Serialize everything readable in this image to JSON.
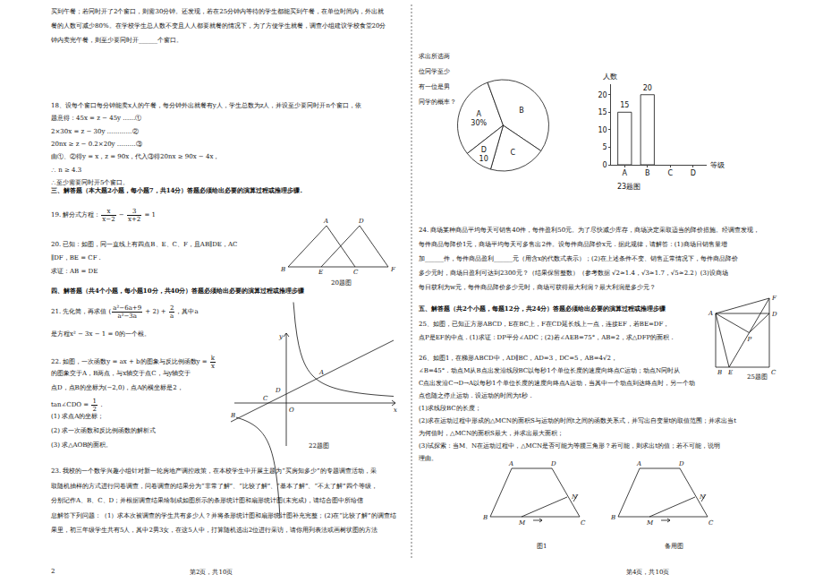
{
  "text": {
    "q17": [
      "买到午餐；若同时开了2个窗口，则需30分钟。还发现，若在25分钟内等待的学生都能买到午餐，在单位时间内，外出就",
      "餐的人数可减少80%。在学校学生总人数不变且人人都要就餐的情况下，为了方便学生就餐，调查小组建议学校食堂20分",
      "钟内卖完午餐，则至少要同时开______个窗口。"
    ],
    "q18": [
      "18、设每个窗口每分钟能卖x人的午餐，每分钟外出就餐有y人，学生总数为z人，并设至少要同时开n个窗口，依",
      "题意得：45x = z − 45y  ……①",
      "2×30x = z − 30y …………②",
      "20nx ≥ z − 0.2×20y ………③",
      "由①、②得y = x，z = 90x，代入③得20nx ≥ 90x − 4x，",
      "∴ n ≥ 4.3",
      "∴至少需要同时开5个窗口。"
    ],
    "section3": [
      "三、解答题（本大题2小题，每小题7，共14分）答题必须给出必要的演算过程或推理步骤."
    ],
    "q19": [
      [
        "19. 解分式方程：",
        {
          "frac": [
            "x",
            "x−2"
          ]
        },
        " − ",
        {
          "frac": [
            "3",
            "x+2"
          ]
        },
        " = 1"
      ]
    ],
    "q20": [
      "20. 已知：如图，同一直线上有四点B、E、C、F，且AB∥DE，AC",
      "∥DF，BE = CF．",
      "      求证：AB = DE"
    ],
    "section4": [
      "四、解答题（共4个小题，每小题10分，共40分）答题必须给出必要的演算过程或推理步骤"
    ],
    "q21": [
      [
        "21. 先化简，再求值 (",
        {
          "frac": [
            "a²−6a+9",
            "a²−3a"
          ]
        },
        " + 2) + ",
        {
          "frac": [
            "2",
            "a"
          ]
        },
        "，其中a"
      ],
      "是方程x² − 3x − 1 = 0的一个根。"
    ],
    "q22": [
      [
        "22. 如图，一次函数y = ax + b的图象与反比例函数y = ",
        {
          "frac": [
            "k",
            "x"
          ]
        }
      ],
      "的图象交于A，B两点，与x轴交于点C，与y轴交于",
      "点D，点B的坐标为(−2,0)，点A的横坐标是2，",
      [
        "tan∠CDO = ",
        {
          "frac": [
            "1",
            "2"
          ]
        },
        "．"
      ],
      "(1) 求点A的坐标；",
      "(2) 求一次函数和反比例函数的解析式",
      "(3) 求△AOB的面积。"
    ],
    "q23": [
      "23. 我校的一个数学兴趣小组针对新一轮房地产调控政策，在本校学生中开展主题为“买房知多少”的专题调查活动，采",
      "取随机抽样的方式进行问卷调查，问卷调查的结果分为“非常了解”、“比较了解”、“基本了解”、“不太了解”四个等级，",
      "分别记作A、B、C、D；并根据调查结果绘制成如图所示的条形统计图和扇形统计图(未完成)，请结合图中所给信",
      "息解答下列问题：（1）求本次被调查的学生共有多少人？并将条形统计图和扇形统计图补充完整；(2)在“比较了解”的调查结",
      "果里，初三年级学生共有5人，其中2男3女，在这5人中，打算随机选出2位进行采访，请你用列表法或画树状图的方法"
    ],
    "q23_tail": [
      "求出所选两",
      "位同学至少",
      "有一位是男",
      "同学的概率？"
    ],
    "q24": [
      "24. 商场某种商品平均每天可销售40件，每件盈利50元。为了尽快减少库存，商场决定采取适当的降价措施。经调查发现，",
      "每件商品每降价1元，商场平均每天可多售出2件。设每件商品降价x元．据此规律，请解答：(1)商场日销售量增",
      "加______件，每件商品盈利______元（用含x的代数式表示）；(2)在上述条件不变、销售正常情况下，每件商品降价",
      "多少元时，商场日盈利可达到2300元？（结果保留整数）（参考数据 √2≈1.4，√3≈1.7，√5≈2.2）(3)设商场",
      "每日获利为w元，每件商品降价多少元时，商场可获得最大利润？最大利润是多少元？"
    ],
    "section5": [
      "五、解答题（共2个小题，每题12分，共24分）答题必须给出必要的演算过程或推理步骤"
    ],
    "q25": [
      "25、如图，已知正方形ABCD，E在BC上，F在CD延长线上一点，连接EF，若BE=DF，",
      "点P是EF的中点．(1)求证：DP平分∠ADC；(2)若∠AEB=75°，AB=2，求△DFP的面积．"
    ],
    "q26": [
      "26、如图1，在梯形ABCD中，AD∥BC，AD=3，DC=5，AB=4√2，",
      "∠B=45°．动点M从B点出发沿线段BC以每秒1个单位长度的速度向终点C运动；动点N同时从",
      "C点出发沿C→D→A以每秒1个单位长度的速度向终点A运动，当其中一个动点到达终点时，另一个动",
      "点也随之停止运动．设运动的时间为t秒．",
      "(1)求线段BC的长度；",
      "(2)求在运动过程中形成的△MCN的面积S与运动的时间t之间的函数关系式，并写出自变量t的取值范围；并求出当t",
      "为何值时，△MCN的面积S最大，并求出最大面积；",
      "(3)试探索：当M、N在运动过程中，△MCN是否可能为等腰三角形？若可能，则求出t的值；若不可能，说明",
      "理由。"
    ]
  },
  "figures": {
    "fig20": {
      "caption": "20题图",
      "labels": [
        "A",
        "D",
        "B",
        "E",
        "C",
        "F"
      ]
    },
    "fig22": {
      "caption": "22题图",
      "labels": [
        "y",
        "x",
        "A",
        "D",
        "C",
        "O",
        "B"
      ]
    },
    "fig25": {
      "caption": "25题图",
      "labels": [
        "A",
        "F",
        "D",
        "P",
        "B",
        "E",
        "C"
      ]
    },
    "fig26a": {
      "caption": "图1",
      "labels": [
        "A",
        "D",
        "N",
        "B",
        "M",
        "C"
      ]
    },
    "fig26b": {
      "caption": "备用图",
      "labels": [
        "A",
        "D",
        "N",
        "B",
        "M",
        "C"
      ]
    }
  },
  "footer": {
    "left_num": "2",
    "left_page": "第2页，共10页",
    "right_page": "第4页，共10页"
  },
  "chart_data": [
    {
      "type": "pie",
      "labels": [
        "A",
        "B",
        "C",
        "D"
      ],
      "values": [
        30,
        40,
        20,
        10
      ],
      "value_labels": [
        "30%",
        null,
        null,
        "10"
      ],
      "color": "#ffffff"
    },
    {
      "type": "bar",
      "categories": [
        "A",
        "B",
        "C",
        "D"
      ],
      "values": [
        15,
        20,
        null,
        null
      ],
      "color": "#ffffff",
      "ylim": [
        0,
        23
      ],
      "yticks": [
        0,
        5,
        10,
        15,
        20
      ],
      "xlabel": "等级",
      "ylabel": "人数",
      "caption": "23题图",
      "data_labels": true,
      "grid": false
    }
  ]
}
